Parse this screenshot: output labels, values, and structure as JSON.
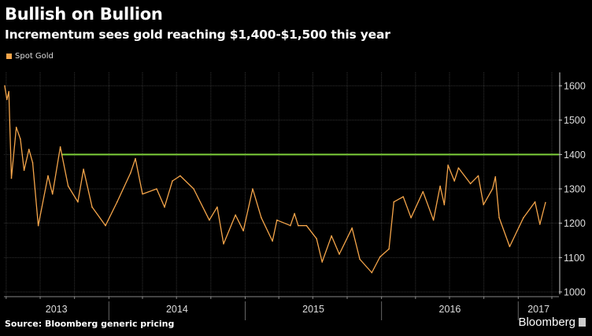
{
  "header": {
    "title": "Bullish on Bullion",
    "subtitle": "Incrementum sees gold reaching $1,400-$1,500 this year"
  },
  "footer": {
    "source": "Source: Bloomberg generic pricing",
    "brand": "Bloomberg"
  },
  "chart_data": {
    "type": "line",
    "title": "Bullish on Bullion",
    "subtitle": "Incrementum sees gold reaching $1,400-$1,500 this year",
    "xlabel": "",
    "ylabel": "",
    "ylim": [
      1000,
      1600
    ],
    "xlim": [
      "2013-03-26",
      "2017-04-20"
    ],
    "yticks": [
      "1000",
      "1100",
      "1200",
      "1300",
      "1400",
      "1500",
      "1600"
    ],
    "xticks": [
      "2013",
      "2014",
      "2015",
      "2016",
      "2017"
    ],
    "grid": true,
    "legend": "top-left",
    "colors": {
      "series": "#f5a54a",
      "reference": "#7ed03a",
      "background": "#000000"
    },
    "reference_line": {
      "y": 1400,
      "start": "2013-08-28"
    },
    "series": [
      {
        "name": "Spot Gold",
        "points": [
          [
            "2013-03-28",
            1600
          ],
          [
            "2013-04-03",
            1560
          ],
          [
            "2013-04-08",
            1583
          ],
          [
            "2013-04-15",
            1331
          ],
          [
            "2013-04-28",
            1479
          ],
          [
            "2013-05-09",
            1445
          ],
          [
            "2013-05-19",
            1354
          ],
          [
            "2013-06-01",
            1415
          ],
          [
            "2013-06-11",
            1376
          ],
          [
            "2013-06-26",
            1193
          ],
          [
            "2013-07-22",
            1338
          ],
          [
            "2013-08-03",
            1285
          ],
          [
            "2013-08-24",
            1422
          ],
          [
            "2013-09-14",
            1308
          ],
          [
            "2013-10-10",
            1262
          ],
          [
            "2013-10-25",
            1357
          ],
          [
            "2013-11-17",
            1247
          ],
          [
            "2013-12-23",
            1193
          ],
          [
            "2014-01-23",
            1262
          ],
          [
            "2014-02-28",
            1346
          ],
          [
            "2014-03-13",
            1388
          ],
          [
            "2014-04-01",
            1285
          ],
          [
            "2014-05-09",
            1300
          ],
          [
            "2014-05-30",
            1247
          ],
          [
            "2014-06-20",
            1323
          ],
          [
            "2014-07-11",
            1338
          ],
          [
            "2014-08-16",
            1300
          ],
          [
            "2014-09-27",
            1209
          ],
          [
            "2014-10-18",
            1247
          ],
          [
            "2014-11-04",
            1140
          ],
          [
            "2014-12-06",
            1224
          ],
          [
            "2014-12-27",
            1178
          ],
          [
            "2015-01-21",
            1300
          ],
          [
            "2015-02-13",
            1216
          ],
          [
            "2015-03-15",
            1148
          ],
          [
            "2015-03-27",
            1209
          ],
          [
            "2015-05-02",
            1193
          ],
          [
            "2015-05-13",
            1228
          ],
          [
            "2015-05-23",
            1193
          ],
          [
            "2015-06-14",
            1193
          ],
          [
            "2015-07-11",
            1155
          ],
          [
            "2015-07-26",
            1087
          ],
          [
            "2015-08-20",
            1163
          ],
          [
            "2015-09-10",
            1110
          ],
          [
            "2015-10-14",
            1186
          ],
          [
            "2015-11-04",
            1095
          ],
          [
            "2015-12-06",
            1056
          ],
          [
            "2015-12-28",
            1102
          ],
          [
            "2016-01-21",
            1125
          ],
          [
            "2016-02-03",
            1262
          ],
          [
            "2016-02-28",
            1277
          ],
          [
            "2016-03-20",
            1216
          ],
          [
            "2016-04-21",
            1292
          ],
          [
            "2016-05-19",
            1209
          ],
          [
            "2016-06-06",
            1308
          ],
          [
            "2016-06-17",
            1254
          ],
          [
            "2016-06-27",
            1369
          ],
          [
            "2016-07-14",
            1323
          ],
          [
            "2016-07-25",
            1361
          ],
          [
            "2016-08-26",
            1315
          ],
          [
            "2016-09-16",
            1338
          ],
          [
            "2016-09-30",
            1254
          ],
          [
            "2016-10-24",
            1300
          ],
          [
            "2016-11-01",
            1335
          ],
          [
            "2016-11-11",
            1216
          ],
          [
            "2016-12-09",
            1132
          ],
          [
            "2017-01-15",
            1216
          ],
          [
            "2017-02-15",
            1262
          ],
          [
            "2017-02-28",
            1197
          ],
          [
            "2017-03-15",
            1260
          ]
        ]
      }
    ]
  }
}
